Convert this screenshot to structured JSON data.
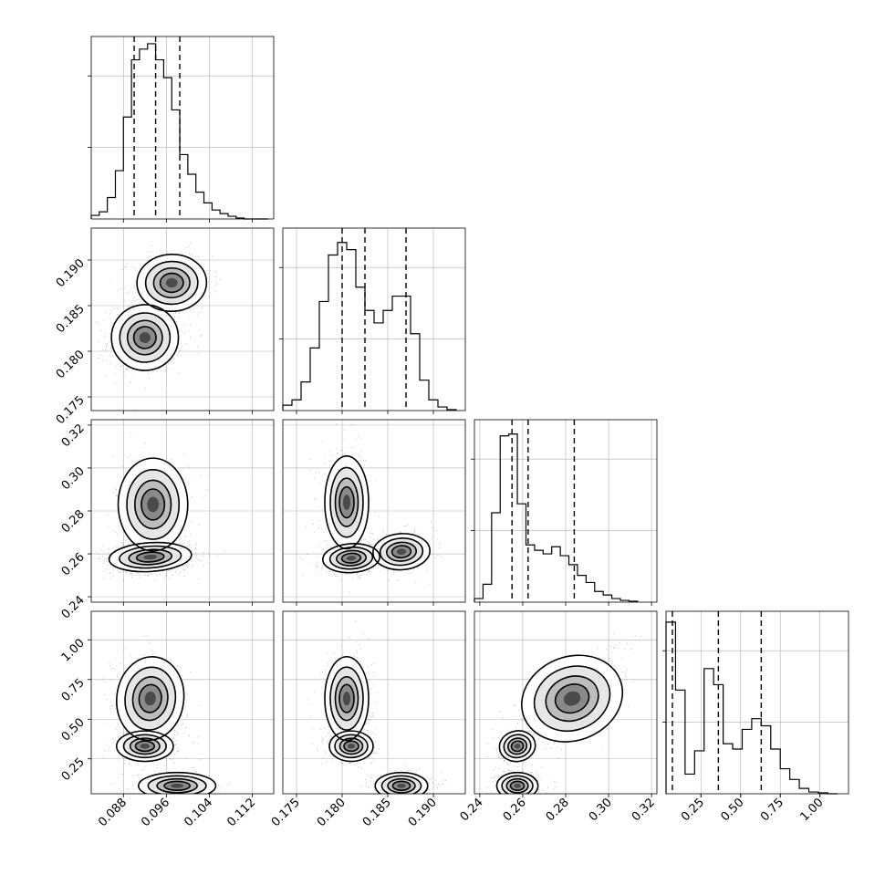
{
  "chart_data": {
    "type": "corner",
    "parameters": 4,
    "grid": true,
    "colors": {
      "line": "#000000",
      "grid": "#b0b0b0",
      "density": "#000000"
    },
    "histograms": [
      {
        "param": 0,
        "range": [
          0.082,
          0.116
        ],
        "bins": [
          0.082,
          0.0835,
          0.085,
          0.0865,
          0.088,
          0.0895,
          0.091,
          0.0925,
          0.094,
          0.0955,
          0.097,
          0.0985,
          0.1,
          0.1015,
          0.103,
          0.1045,
          0.106,
          0.1075,
          0.109,
          0.1105,
          0.112,
          0.1135,
          0.115
        ],
        "counts": [
          0.02,
          0.04,
          0.12,
          0.27,
          0.57,
          0.89,
          0.95,
          0.98,
          0.89,
          0.79,
          0.61,
          0.36,
          0.25,
          0.15,
          0.09,
          0.05,
          0.03,
          0.015,
          0.005,
          0,
          0,
          0
        ],
        "quantiles": [
          0.09,
          0.094,
          0.0985
        ]
      },
      {
        "param": 1,
        "range": [
          0.1735,
          0.1935
        ],
        "bins": [
          0.1735,
          0.1745,
          0.1755,
          0.1765,
          0.1775,
          0.1785,
          0.1795,
          0.1805,
          0.1815,
          0.1825,
          0.1835,
          0.1845,
          0.1855,
          0.1865,
          0.1875,
          0.1885,
          0.1895,
          0.1905,
          0.1915,
          0.1925
        ],
        "counts": [
          0.03,
          0.06,
          0.16,
          0.35,
          0.61,
          0.87,
          0.94,
          0.9,
          0.69,
          0.56,
          0.49,
          0.56,
          0.64,
          0.64,
          0.43,
          0.17,
          0.06,
          0.02,
          0.005
        ],
        "quantiles": [
          0.18,
          0.1825,
          0.187
        ]
      },
      {
        "param": 2,
        "range": [
          0.2375,
          0.3225
        ],
        "bins": [
          0.2375,
          0.2415,
          0.2455,
          0.2495,
          0.2535,
          0.2575,
          0.2615,
          0.2655,
          0.2695,
          0.2735,
          0.2775,
          0.2815,
          0.2855,
          0.2895,
          0.2935,
          0.2975,
          0.3015,
          0.3055,
          0.3095,
          0.3135
        ],
        "counts": [
          0.02,
          0.1,
          0.5,
          0.93,
          0.94,
          0.55,
          0.32,
          0.29,
          0.27,
          0.31,
          0.26,
          0.21,
          0.15,
          0.11,
          0.06,
          0.04,
          0.02,
          0.01,
          0.005
        ],
        "quantiles": [
          0.255,
          0.2625,
          0.284
        ]
      },
      {
        "param": 3,
        "range": [
          0.03,
          1.18
        ],
        "bins": [
          0.03,
          0.09,
          0.15,
          0.21,
          0.27,
          0.33,
          0.39,
          0.45,
          0.51,
          0.57,
          0.63,
          0.69,
          0.75,
          0.81,
          0.87,
          0.93,
          0.99,
          1.05,
          1.11
        ],
        "counts": [
          0.96,
          0.58,
          0.11,
          0.24,
          0.7,
          0.61,
          0.28,
          0.25,
          0.36,
          0.42,
          0.38,
          0.25,
          0.14,
          0.08,
          0.03,
          0.01,
          0.005,
          0
        ],
        "quantiles": [
          0.07,
          0.36,
          0.63
        ]
      }
    ],
    "scatter_panels": [
      {
        "row": 1,
        "col": 0,
        "modes": [
          {
            "x": 0.092,
            "y": 0.1815,
            "sx": 0.0026,
            "sy": 0.0015,
            "rho": 0.1,
            "w": 0.6
          },
          {
            "x": 0.097,
            "y": 0.1875,
            "sx": 0.0027,
            "sy": 0.0013,
            "rho": 0.05,
            "w": 0.4
          }
        ]
      },
      {
        "row": 2,
        "col": 0,
        "modes": [
          {
            "x": 0.093,
            "y": 0.2585,
            "sx": 0.0032,
            "sy": 0.0028,
            "rho": 0.1,
            "w": 0.65
          },
          {
            "x": 0.0935,
            "y": 0.283,
            "sx": 0.0027,
            "sy": 0.009,
            "rho": 0.0,
            "w": 0.35
          }
        ]
      },
      {
        "row": 2,
        "col": 1,
        "modes": [
          {
            "x": 0.181,
            "y": 0.258,
            "sx": 0.0013,
            "sy": 0.0028,
            "rho": 0.1,
            "w": 0.4
          },
          {
            "x": 0.1865,
            "y": 0.261,
            "sx": 0.0013,
            "sy": 0.0035,
            "rho": 0.1,
            "w": 0.25
          },
          {
            "x": 0.1805,
            "y": 0.284,
            "sx": 0.001,
            "sy": 0.009,
            "rho": 0.0,
            "w": 0.35
          }
        ]
      },
      {
        "row": 3,
        "col": 0,
        "modes": [
          {
            "x": 0.093,
            "y": 0.63,
            "sx": 0.0026,
            "sy": 0.11,
            "rho": -0.2,
            "w": 0.35
          },
          {
            "x": 0.092,
            "y": 0.33,
            "sx": 0.0022,
            "sy": 0.04,
            "rho": 0.0,
            "w": 0.25
          },
          {
            "x": 0.098,
            "y": 0.08,
            "sx": 0.003,
            "sy": 0.035,
            "rho": 0.0,
            "w": 0.4
          }
        ]
      },
      {
        "row": 3,
        "col": 1,
        "modes": [
          {
            "x": 0.1805,
            "y": 0.63,
            "sx": 0.001,
            "sy": 0.11,
            "rho": 0.0,
            "w": 0.35
          },
          {
            "x": 0.181,
            "y": 0.33,
            "sx": 0.001,
            "sy": 0.04,
            "rho": 0.0,
            "w": 0.25
          },
          {
            "x": 0.1865,
            "y": 0.08,
            "sx": 0.0012,
            "sy": 0.035,
            "rho": 0.0,
            "w": 0.4
          }
        ]
      },
      {
        "row": 3,
        "col": 2,
        "modes": [
          {
            "x": 0.283,
            "y": 0.63,
            "sx": 0.01,
            "sy": 0.11,
            "rho": 0.6,
            "w": 0.35
          },
          {
            "x": 0.2575,
            "y": 0.33,
            "sx": 0.0035,
            "sy": 0.04,
            "rho": 0.3,
            "w": 0.25
          },
          {
            "x": 0.2575,
            "y": 0.08,
            "sx": 0.004,
            "sy": 0.035,
            "rho": 0.0,
            "w": 0.4
          }
        ]
      }
    ],
    "axes": [
      {
        "param": 0,
        "range": [
          0.082,
          0.116
        ],
        "ticks": [
          0.088,
          0.096,
          0.104,
          0.112
        ],
        "tick_labels": [
          "0.088",
          "0.096",
          "0.104",
          "0.112"
        ]
      },
      {
        "param": 1,
        "range": [
          0.1735,
          0.1935
        ],
        "ticks": [
          0.175,
          0.18,
          0.185,
          0.19
        ],
        "tick_labels": [
          "0.175",
          "0.180",
          "0.185",
          "0.190"
        ]
      },
      {
        "param": 2,
        "range": [
          0.2375,
          0.3225
        ],
        "ticks": [
          0.24,
          0.26,
          0.28,
          0.3,
          0.32
        ],
        "tick_labels": [
          "0.24",
          "0.26",
          "0.28",
          "0.30",
          "0.32"
        ]
      },
      {
        "param": 3,
        "range": [
          0.03,
          1.18
        ],
        "ticks": [
          0.25,
          0.5,
          0.75,
          1.0
        ],
        "tick_labels": [
          "0.25",
          "0.50",
          "0.75",
          "1.00"
        ]
      }
    ],
    "diag_x_tick_labels": {
      "param3": [
        "0.25",
        "0.50",
        "0.75",
        "1.00"
      ]
    },
    "title": "",
    "xlabel": "",
    "ylabel": ""
  }
}
